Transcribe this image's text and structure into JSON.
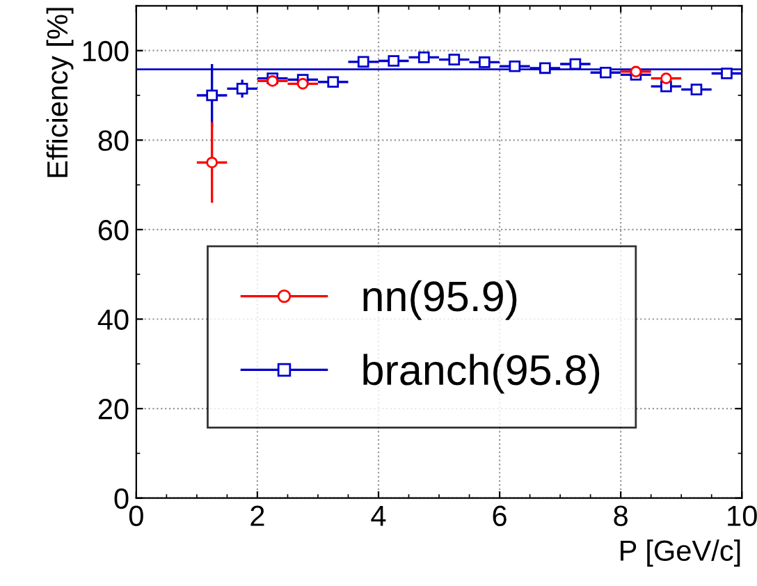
{
  "chart_data": {
    "type": "scatter",
    "xlabel": "P [GeV/c]",
    "ylabel": "Efficiency [%]",
    "x": [
      1.25,
      1.75,
      2.25,
      2.75,
      3.25,
      3.75,
      4.25,
      4.75,
      5.25,
      5.75,
      6.25,
      6.75,
      7.25,
      7.75,
      8.25,
      8.75,
      9.25,
      9.75
    ],
    "series": [
      {
        "name": "nn(95.9)",
        "color": "#ff0000",
        "marker": "circle",
        "values": [
          75,
          null,
          93.2,
          92.6,
          null,
          null,
          null,
          null,
          null,
          null,
          null,
          null,
          null,
          null,
          95.3,
          93.8,
          null,
          null
        ],
        "errors": [
          9,
          null,
          1,
          1,
          null,
          null,
          null,
          null,
          null,
          null,
          null,
          null,
          null,
          null,
          0.8,
          1,
          null,
          null
        ],
        "xerrors": [
          0.25,
          null,
          0.25,
          0.25,
          null,
          null,
          null,
          null,
          null,
          null,
          null,
          null,
          null,
          null,
          0.25,
          0.25,
          null,
          null
        ]
      },
      {
        "name": "branch(95.8)",
        "color": "#0000cc",
        "marker": "square",
        "values": [
          90,
          91.5,
          93.8,
          93.5,
          93,
          97.5,
          97.7,
          98.5,
          98,
          97.4,
          96.5,
          96.1,
          97,
          95.1,
          94.6,
          92,
          91.3,
          94.9
        ],
        "errors": [
          7,
          2,
          1,
          1,
          1,
          0.7,
          0.7,
          0.6,
          0.6,
          0.7,
          0.7,
          0.7,
          0.7,
          0.8,
          0.8,
          1,
          1,
          1
        ],
        "xerrors": [
          0.25,
          0.25,
          0.25,
          0.25,
          0.25,
          0.25,
          0.25,
          0.25,
          0.25,
          0.25,
          0.25,
          0.25,
          0.25,
          0.25,
          0.25,
          0.25,
          0.25,
          0.25
        ]
      }
    ],
    "ref_lines": [
      {
        "axis": "y",
        "value": 95.8,
        "color": "#0000cc"
      }
    ],
    "xlim": [
      0,
      10
    ],
    "xticks": [
      0,
      2,
      4,
      6,
      8,
      10
    ],
    "ylim": [
      0,
      110
    ],
    "yticks": [
      0,
      20,
      40,
      60,
      80,
      100
    ],
    "grid": true,
    "legend": "bottom right"
  }
}
